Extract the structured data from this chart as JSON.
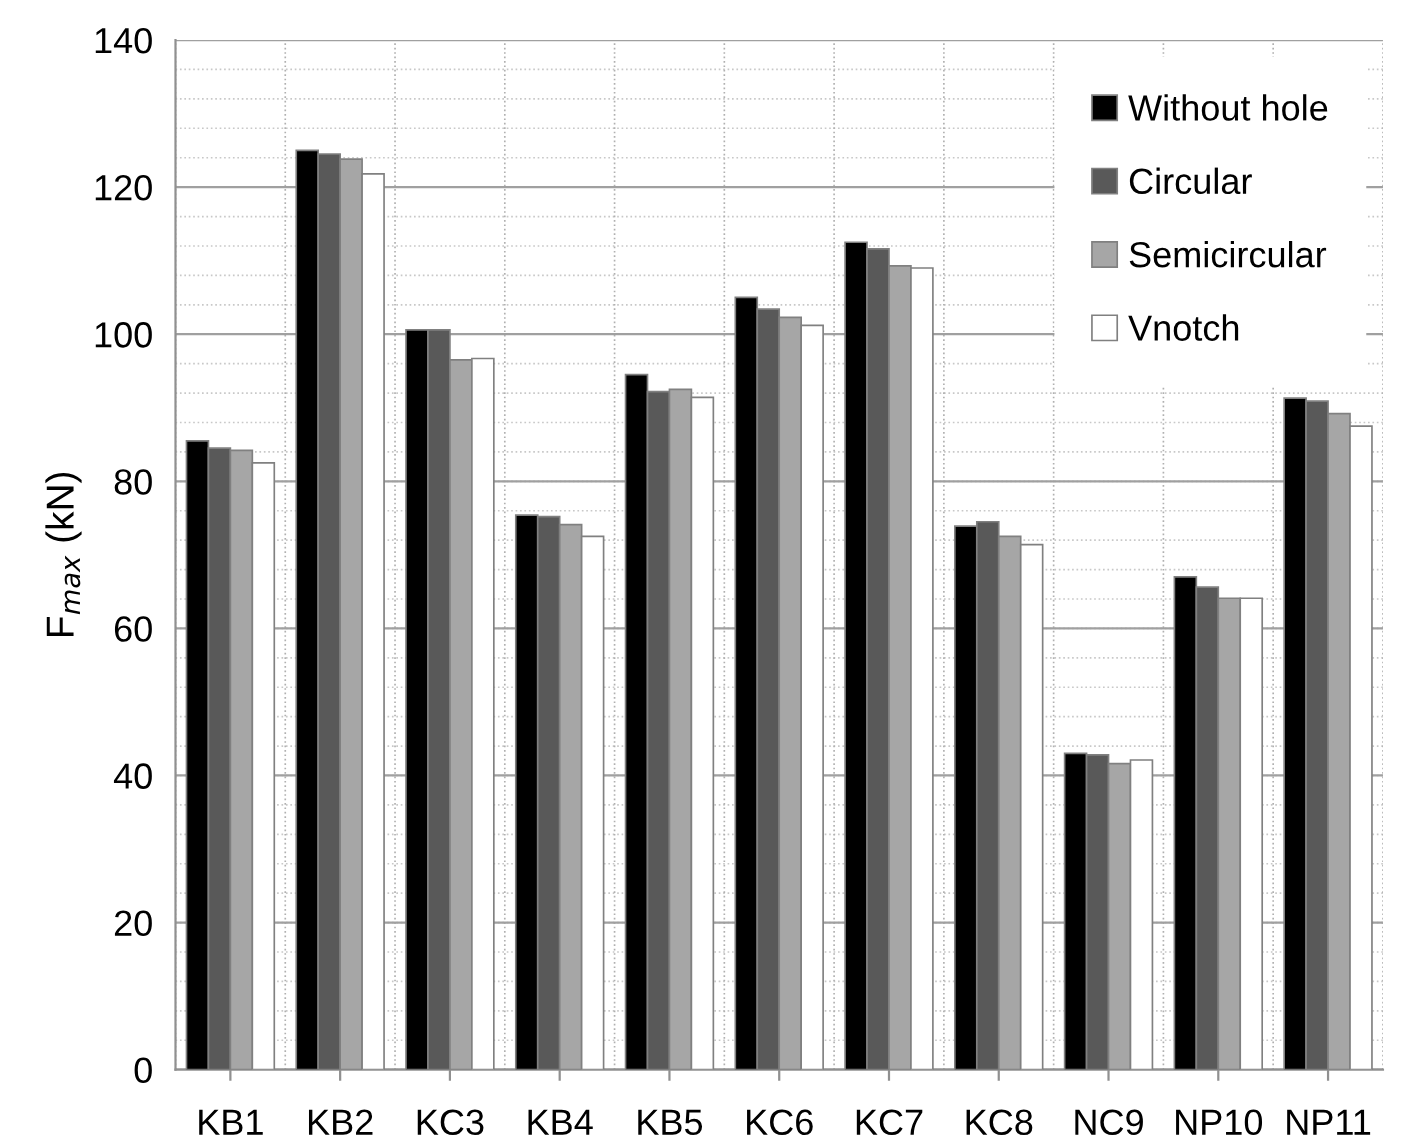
{
  "chart_data": {
    "type": "bar",
    "ylabel": "F$_{max}$ (kN)",
    "categories": [
      "KB1",
      "KB2",
      "KC3",
      "KB4",
      "KB5",
      "KC6",
      "KC7",
      "KC8",
      "NC9",
      "NP10",
      "NP11"
    ],
    "series": [
      {
        "name": "Without hole",
        "color": "#000000",
        "values": [
          85.5,
          125,
          100.6,
          75.4,
          94.5,
          105,
          112.5,
          73.9,
          43,
          67,
          91.3
        ]
      },
      {
        "name": "Circular",
        "color": "#595959",
        "values": [
          84.5,
          124.5,
          100.6,
          75.2,
          92.2,
          103.4,
          111.6,
          74.5,
          42.8,
          65.6,
          90.9
        ]
      },
      {
        "name": "Semicircular",
        "color": "#a6a6a6",
        "values": [
          84.2,
          123.8,
          96.5,
          74.1,
          92.5,
          102.3,
          109.3,
          72.5,
          41.6,
          64.1,
          89.2
        ]
      },
      {
        "name": "Vnotch",
        "color": "#ffffff",
        "values": [
          82.5,
          121.8,
          96.7,
          72.5,
          91.4,
          101.2,
          109,
          71.4,
          42.1,
          64.1,
          87.5
        ]
      }
    ],
    "ylim": [
      0,
      140
    ],
    "yticks": [
      0,
      20,
      40,
      60,
      80,
      100,
      120,
      140
    ],
    "grid": true,
    "legend": "top right"
  }
}
